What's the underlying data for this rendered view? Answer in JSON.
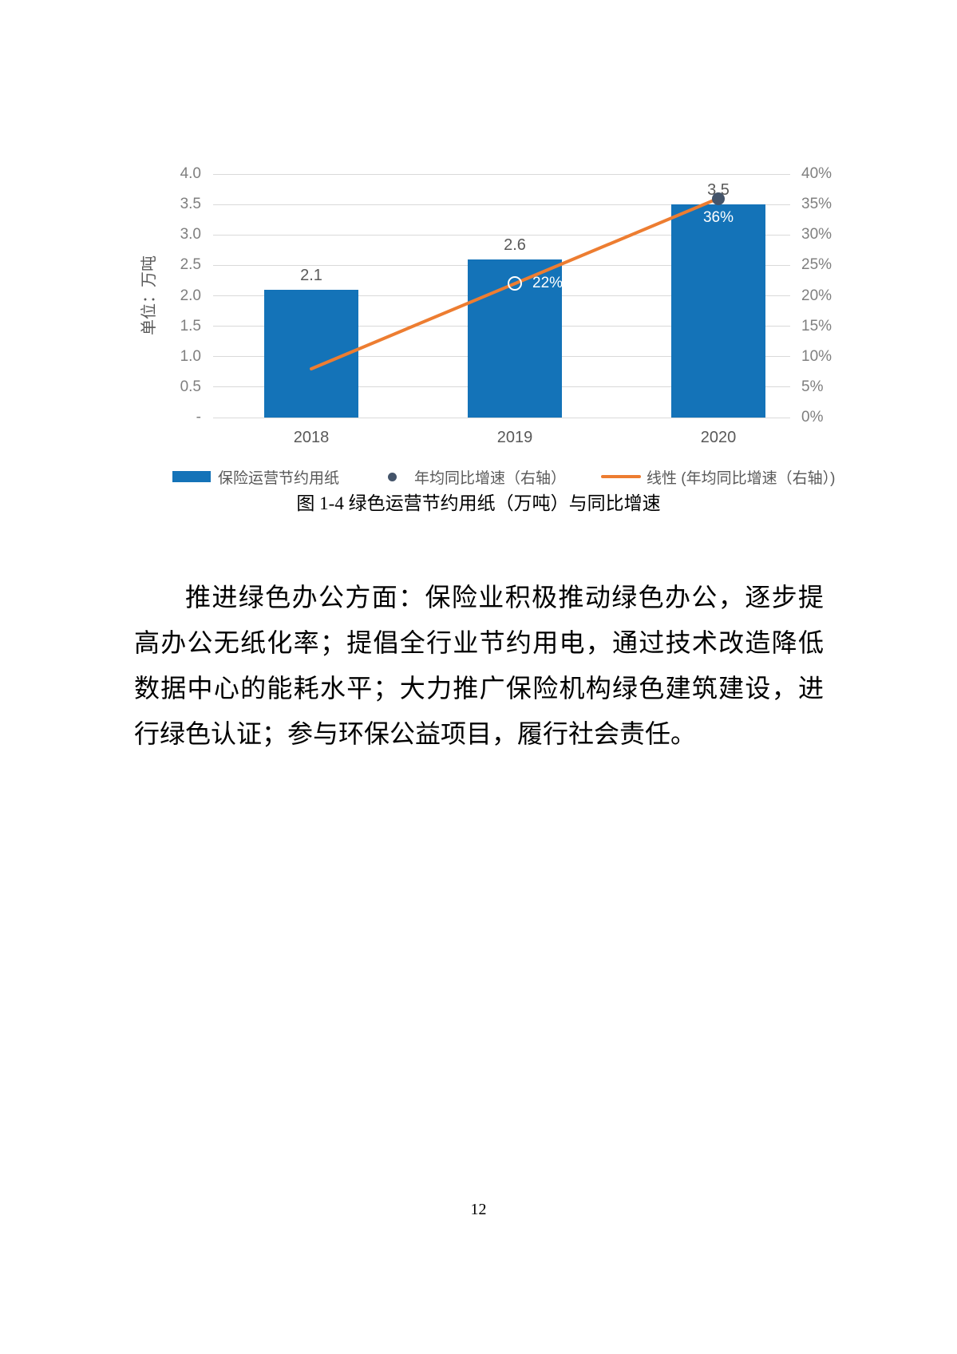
{
  "figure": {
    "caption": "图 1-4 绿色运营节约用纸（万吨）与同比增速"
  },
  "chart_data": {
    "type": "combo-bar-line",
    "categories": [
      "2018",
      "2019",
      "2020"
    ],
    "series": [
      {
        "name": "保险运营节约用纸",
        "type": "bar",
        "axis": "left",
        "values": [
          2.1,
          2.6,
          3.5
        ],
        "labels": [
          "2.1",
          "2.6",
          "3.5"
        ],
        "color": "#1473B8"
      },
      {
        "name": "年均同比增速（右轴）",
        "type": "scatter",
        "axis": "right",
        "unit": "%",
        "values": [
          null,
          22,
          36
        ],
        "labels": [
          "",
          "22%",
          "36%"
        ],
        "marker_styles": [
          "none",
          "hollow-white",
          "filled-navy"
        ],
        "color": "#44546A"
      },
      {
        "name": "线性 (年均同比增速（右轴）)",
        "type": "line",
        "axis": "right",
        "unit": "%",
        "values": [
          8,
          22,
          36
        ],
        "color": "#ED7D31"
      }
    ],
    "left_axis": {
      "title": "单位：万吨",
      "min": 0,
      "max": 4.0,
      "ticks": [
        "4.0",
        "3.5",
        "3.0",
        "2.5",
        "2.0",
        "1.5",
        "1.0",
        "0.5",
        "-"
      ]
    },
    "right_axis": {
      "min": 0,
      "max": 40,
      "ticks": [
        "40%",
        "35%",
        "30%",
        "25%",
        "20%",
        "15%",
        "10%",
        "5%",
        "0%"
      ]
    },
    "grid": true,
    "legend_position": "bottom"
  },
  "legend": {
    "items": [
      {
        "label": "保险运营节约用纸",
        "marker": "bar-swatch",
        "color": "#1473B8"
      },
      {
        "label": "年均同比增速（右轴）",
        "marker": "dot",
        "color": "#44546A"
      },
      {
        "label": "线性 (年均同比增速（右轴）)",
        "marker": "line",
        "color": "#ED7D31"
      }
    ]
  },
  "paragraph": {
    "lines": [
      "推进绿色办公方面：保险业积极推动绿色办公，逐步提",
      "高办公无纸化率；提倡全行业节约用电，通过技术改造降低",
      "数据中心的能耗水平；大力推广保险机构绿色建筑建设，进",
      "行绿色认证；参与环保公益项目，履行社会责任。"
    ]
  },
  "page": {
    "number": "12"
  },
  "colors": {
    "bar": "#1473B8",
    "trend_line": "#ED7D31",
    "scatter_dot": "#44546A",
    "gridline": "#D9D9D9",
    "tick_text": "#7F7F7F",
    "data_label": "#595959",
    "pct_label_on_bar": "#FFFFFF"
  }
}
